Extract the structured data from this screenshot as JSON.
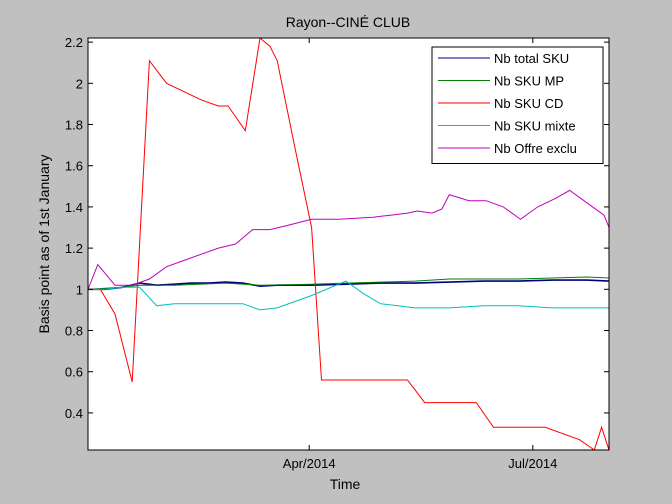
{
  "chart_data": {
    "type": "line",
    "title": "Rayon--CINÉ CLUB",
    "xlabel": "Time",
    "ylabel": "Basis point as of 1st January",
    "x_tick_labels": [
      "Apr/2014",
      "Jul/2014"
    ],
    "x_tick_days": [
      90,
      181
    ],
    "xlim_days": [
      0,
      212
    ],
    "ylim": [
      0.22,
      2.22
    ],
    "y_ticks": [
      0.4,
      0.6,
      0.8,
      1,
      1.2,
      1.4,
      1.6,
      1.8,
      2,
      2.2
    ],
    "y_tick_labels": [
      "0.4",
      "0.6",
      "0.8",
      "1",
      "1.2",
      "1.4",
      "1.6",
      "1.8",
      "2",
      "2.2"
    ],
    "grid": false,
    "legend_position": "top-right",
    "background_color": "#c0c0c0",
    "plot_background_color": "#ffffff",
    "series": [
      {
        "name": "Nb total SKU",
        "color": "#00007f",
        "points": [
          [
            0,
            1.0
          ],
          [
            7,
            1.0
          ],
          [
            14,
            1.01
          ],
          [
            21,
            1.03
          ],
          [
            28,
            1.02
          ],
          [
            35,
            1.025
          ],
          [
            42,
            1.03
          ],
          [
            49,
            1.03
          ],
          [
            56,
            1.035
          ],
          [
            63,
            1.03
          ],
          [
            70,
            1.015
          ],
          [
            77,
            1.02
          ],
          [
            84,
            1.02
          ],
          [
            91,
            1.02
          ],
          [
            105,
            1.025
          ],
          [
            119,
            1.03
          ],
          [
            133,
            1.03
          ],
          [
            147,
            1.035
          ],
          [
            161,
            1.04
          ],
          [
            175,
            1.04
          ],
          [
            189,
            1.045
          ],
          [
            203,
            1.045
          ],
          [
            212,
            1.04
          ]
        ]
      },
      {
        "name": "Nb SKU MP",
        "color": "#007f00",
        "points": [
          [
            0,
            1.0
          ],
          [
            14,
            1.01
          ],
          [
            21,
            1.02
          ],
          [
            35,
            1.02
          ],
          [
            56,
            1.03
          ],
          [
            70,
            1.02
          ],
          [
            91,
            1.025
          ],
          [
            105,
            1.03
          ],
          [
            119,
            1.035
          ],
          [
            133,
            1.04
          ],
          [
            147,
            1.05
          ],
          [
            161,
            1.05
          ],
          [
            175,
            1.05
          ],
          [
            189,
            1.055
          ],
          [
            203,
            1.06
          ],
          [
            212,
            1.055
          ]
        ]
      },
      {
        "name": "Nb SKU CD",
        "color": "#ff0000",
        "points": [
          [
            0,
            1.0
          ],
          [
            5,
            1.0
          ],
          [
            11,
            0.88
          ],
          [
            18,
            0.55
          ],
          [
            25,
            2.11
          ],
          [
            32,
            2.0
          ],
          [
            39,
            1.96
          ],
          [
            46,
            1.92
          ],
          [
            53,
            1.89
          ],
          [
            57,
            1.89
          ],
          [
            64,
            1.77
          ],
          [
            70,
            2.22
          ],
          [
            74,
            2.18
          ],
          [
            77,
            2.11
          ],
          [
            84,
            1.7
          ],
          [
            91,
            1.3
          ],
          [
            95,
            0.56
          ],
          [
            102,
            0.56
          ],
          [
            116,
            0.56
          ],
          [
            130,
            0.56
          ],
          [
            137,
            0.45
          ],
          [
            144,
            0.45
          ],
          [
            151,
            0.45
          ],
          [
            158,
            0.45
          ],
          [
            165,
            0.33
          ],
          [
            172,
            0.33
          ],
          [
            186,
            0.33
          ],
          [
            200,
            0.27
          ],
          [
            206,
            0.22
          ],
          [
            209,
            0.33
          ],
          [
            212,
            0.22
          ]
        ]
      },
      {
        "name": "Nb SKU mixte",
        "color": "#00bfbf",
        "points": [
          [
            0,
            1.0
          ],
          [
            7,
            1.0
          ],
          [
            14,
            1.01
          ],
          [
            21,
            1.01
          ],
          [
            28,
            0.92
          ],
          [
            35,
            0.93
          ],
          [
            49,
            0.93
          ],
          [
            63,
            0.93
          ],
          [
            70,
            0.9
          ],
          [
            77,
            0.91
          ],
          [
            91,
            0.97
          ],
          [
            105,
            1.04
          ],
          [
            112,
            0.98
          ],
          [
            119,
            0.93
          ],
          [
            126,
            0.92
          ],
          [
            133,
            0.91
          ],
          [
            147,
            0.91
          ],
          [
            161,
            0.92
          ],
          [
            175,
            0.92
          ],
          [
            189,
            0.91
          ],
          [
            203,
            0.91
          ],
          [
            212,
            0.91
          ]
        ]
      },
      {
        "name": "Nb Offre exclu",
        "color": "#bf00bf",
        "points": [
          [
            0,
            1.0
          ],
          [
            4,
            1.12
          ],
          [
            11,
            1.02
          ],
          [
            18,
            1.02
          ],
          [
            25,
            1.05
          ],
          [
            32,
            1.11
          ],
          [
            39,
            1.14
          ],
          [
            46,
            1.17
          ],
          [
            53,
            1.2
          ],
          [
            60,
            1.22
          ],
          [
            67,
            1.29
          ],
          [
            74,
            1.29
          ],
          [
            81,
            1.31
          ],
          [
            91,
            1.34
          ],
          [
            102,
            1.34
          ],
          [
            116,
            1.35
          ],
          [
            123,
            1.36
          ],
          [
            130,
            1.37
          ],
          [
            134,
            1.38
          ],
          [
            140,
            1.37
          ],
          [
            144,
            1.39
          ],
          [
            147,
            1.46
          ],
          [
            155,
            1.43
          ],
          [
            162,
            1.43
          ],
          [
            169,
            1.4
          ],
          [
            176,
            1.34
          ],
          [
            183,
            1.4
          ],
          [
            190,
            1.44
          ],
          [
            196,
            1.48
          ],
          [
            203,
            1.42
          ],
          [
            210,
            1.36
          ],
          [
            217,
            1.28
          ],
          [
            212,
            1.3
          ]
        ]
      }
    ]
  }
}
